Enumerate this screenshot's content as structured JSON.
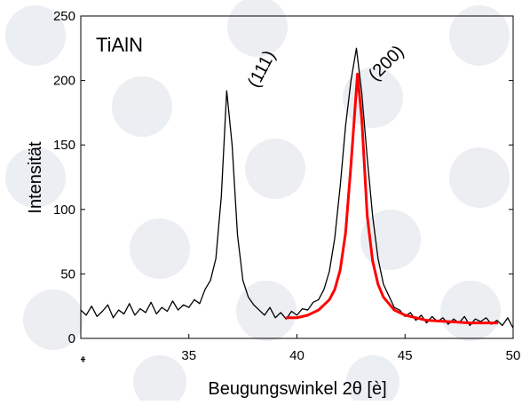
{
  "chart_data": {
    "type": "line",
    "annotations": [
      "TiAlN",
      "(111)",
      "(200)"
    ],
    "xlabel": "Beugungswinkel 2θ [è]",
    "ylabel": "Intensität",
    "xlim": [
      30,
      50
    ],
    "xticks": [
      {
        "value": 30,
        "label": "ﻬ"
      },
      35,
      40,
      45,
      50
    ],
    "ylim": [
      0,
      250
    ],
    "yticks": [
      0,
      50,
      100,
      150,
      200,
      250
    ],
    "series": [
      {
        "color": "#000000",
        "x": [
          30,
          30.25,
          30.5,
          30.75,
          31,
          31.25,
          31.5,
          31.75,
          32,
          32.25,
          32.5,
          32.75,
          33,
          33.25,
          33.5,
          33.75,
          34,
          34.25,
          34.5,
          34.75,
          35,
          35.25,
          35.5,
          35.75,
          36,
          36.25,
          36.5,
          36.75,
          37,
          37.25,
          37.5,
          37.75,
          38,
          38.25,
          38.5,
          38.75,
          39,
          39.25,
          39.5,
          39.75,
          40,
          40.25,
          40.5,
          40.75,
          41,
          41.25,
          41.5,
          41.75,
          42,
          42.25,
          42.5,
          42.75,
          43,
          43.25,
          43.5,
          43.75,
          44,
          44.25,
          44.5,
          44.75,
          45,
          45.25,
          45.5,
          45.75,
          46,
          46.25,
          46.5,
          46.75,
          47,
          47.25,
          47.5,
          47.75,
          48,
          48.25,
          48.5,
          48.75,
          49,
          49.25,
          49.5,
          49.75,
          50
        ],
        "values": [
          22,
          18,
          25,
          17,
          21,
          26,
          16,
          22,
          19,
          27,
          18,
          23,
          20,
          28,
          19,
          24,
          21,
          29,
          22,
          26,
          24,
          30,
          27,
          38,
          45,
          62,
          110,
          192,
          150,
          80,
          45,
          32,
          26,
          22,
          18,
          24,
          16,
          20,
          15,
          21,
          18,
          23,
          22,
          28,
          30,
          38,
          52,
          78,
          118,
          165,
          200,
          225,
          190,
          140,
          95,
          62,
          42,
          33,
          24,
          22,
          17,
          20,
          14,
          18,
          12,
          17,
          13,
          16,
          11,
          15,
          12,
          17,
          10,
          15,
          13,
          16,
          11,
          14,
          10,
          16,
          8
        ]
      },
      {
        "color": "#ff0000",
        "x": [
          39.5,
          40,
          40.5,
          41,
          41.5,
          41.75,
          42,
          42.25,
          42.5,
          42.8,
          43,
          43.25,
          43.5,
          43.75,
          44,
          44.5,
          45,
          46,
          47,
          48,
          49.3
        ],
        "values": [
          16,
          16,
          18,
          22,
          30,
          38,
          53,
          82,
          135,
          205,
          170,
          95,
          60,
          42,
          32,
          22,
          18,
          14,
          13,
          12,
          12
        ]
      }
    ]
  }
}
